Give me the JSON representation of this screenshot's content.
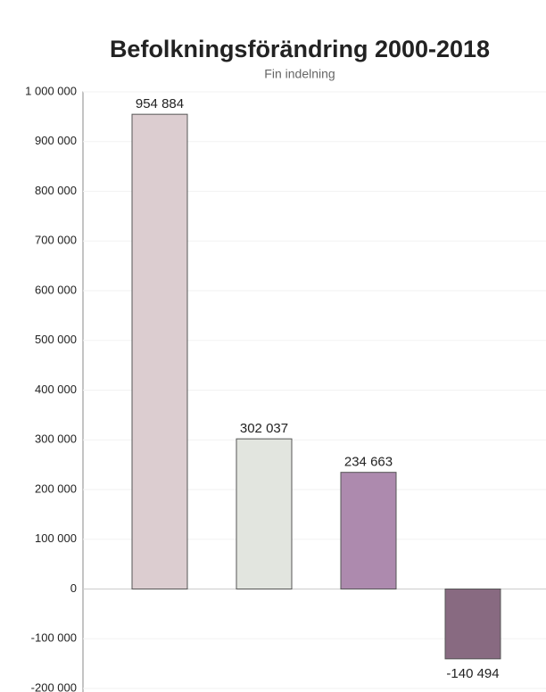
{
  "chart_data": {
    "type": "bar",
    "title": "Befolkningsförändring 2000-2018",
    "subtitle": "Fin indelning",
    "categories": [
      null,
      null,
      null,
      null
    ],
    "values": [
      954884,
      302037,
      234663,
      -140494
    ],
    "value_labels": [
      "954 884",
      "302 037",
      "234 663",
      "-140 494"
    ],
    "colors": [
      "#dccdd0",
      "#e2e5df",
      "#ad8aae",
      "#886a81"
    ],
    "ylim": [
      -200000,
      1000000
    ],
    "yticks": [
      {
        "value": -200000,
        "label": "-200 000"
      },
      {
        "value": -100000,
        "label": "-100 000"
      },
      0,
      {
        "value": 100000,
        "label": "100 000"
      },
      {
        "value": 200000,
        "label": "200 000"
      },
      {
        "value": 300000,
        "label": "300 000"
      },
      {
        "value": 400000,
        "label": "400 000"
      },
      {
        "value": 500000,
        "label": "500 000"
      },
      {
        "value": 600000,
        "label": "600 000"
      },
      {
        "value": 700000,
        "label": "700 000"
      },
      {
        "value": 800000,
        "label": "800 000"
      },
      {
        "value": 900000,
        "label": "900 000"
      },
      {
        "value": 1000000,
        "label": "1 000 000"
      }
    ],
    "grid": true
  }
}
